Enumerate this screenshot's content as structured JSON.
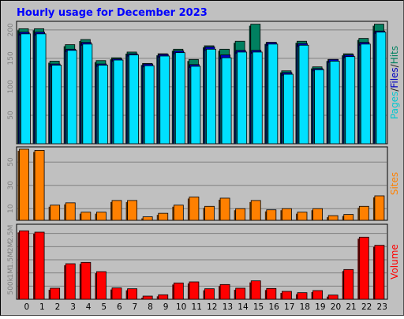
{
  "chart_data": {
    "type": "bar",
    "title": "Hourly usage for December 2023",
    "x": [
      "0",
      "1",
      "2",
      "3",
      "4",
      "5",
      "6",
      "7",
      "8",
      "9",
      "10",
      "11",
      "12",
      "13",
      "14",
      "15",
      "16",
      "17",
      "18",
      "19",
      "20",
      "21",
      "22",
      "23"
    ],
    "panels": [
      {
        "name": "traffic",
        "labels": [
          {
            "text": "Pages",
            "color": "#00c8d0"
          },
          {
            "text": "/",
            "color": "#202020"
          },
          {
            "text": "Files",
            "color": "#0000c0"
          },
          {
            "text": "/",
            "color": "#202020"
          },
          {
            "text": "Hits",
            "color": "#008060"
          }
        ],
        "ylim": [
          0,
          215
        ],
        "yticks": [
          "50",
          "100",
          "150",
          "200"
        ],
        "ytick_values": [
          50,
          100,
          150,
          200
        ],
        "series": [
          {
            "key": "hits",
            "color": "#008060",
            "values": [
              202,
              202,
              145,
              174,
              183,
              146,
              151,
              161,
              141,
              158,
              166,
              148,
              172,
              166,
              180,
              210,
              178,
              128,
              180,
              135,
              148,
              158,
              185,
              210
            ]
          },
          {
            "key": "files",
            "color": "#0000c0",
            "values": [
              196,
              196,
              140,
              166,
              178,
              140,
              149,
              158,
              140,
              157,
              163,
              139,
              170,
              156,
              164,
              164,
              178,
              125,
              176,
              132,
              148,
              156,
              178,
              198
            ]
          },
          {
            "key": "pages",
            "color": "#00e0ff",
            "values": [
              193,
              193,
              138,
              164,
              175,
              138,
              147,
              156,
              137,
              154,
              160,
              136,
              166,
              151,
              161,
              161,
              175,
              122,
              173,
              130,
              145,
              153,
              175,
              196
            ]
          }
        ]
      },
      {
        "name": "sites",
        "labels": [
          {
            "text": "Sites",
            "color": "#ff8000"
          }
        ],
        "ylim": [
          0,
          63
        ],
        "yticks": [
          "10",
          "30",
          "50"
        ],
        "ytick_values": [
          10,
          30,
          50
        ],
        "series": [
          {
            "key": "sites",
            "color": "#ff8000",
            "values": [
              61,
              60,
              13,
              15,
              7,
              7,
              17,
              17,
              3,
              6,
              13,
              20,
              12,
              19,
              10,
              17,
              9,
              10,
              7,
              10,
              4,
              5,
              12,
              21
            ]
          }
        ]
      },
      {
        "name": "volume",
        "labels": [
          {
            "text": "Volume",
            "color": "#ff0000"
          }
        ],
        "ylim": [
          0,
          2850
        ],
        "yticks": [
          "500k",
          "1M",
          "1.5M",
          "2M",
          "2.5M"
        ],
        "ytick_values": [
          500,
          1000,
          1500,
          2000,
          2500
        ],
        "series": [
          {
            "key": "volume",
            "color": "#ff0000",
            "values": [
              2600,
              2550,
              420,
              1350,
              1400,
              1050,
              430,
              400,
              120,
              170,
              620,
              660,
              400,
              560,
              420,
              700,
              410,
              300,
              250,
              330,
              160,
              1130,
              2360,
              2050
            ]
          }
        ]
      }
    ]
  }
}
